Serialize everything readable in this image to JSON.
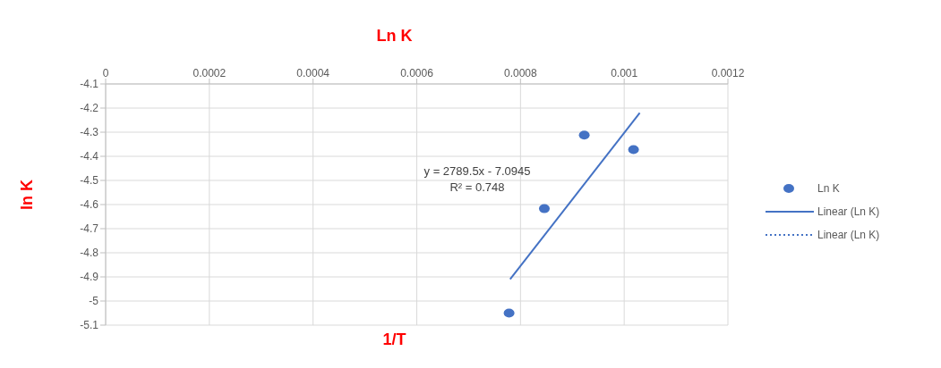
{
  "chart_data": {
    "type": "scatter",
    "title": "Ln K",
    "xlabel": "1/T",
    "ylabel": "ln K",
    "xlim": [
      0,
      0.0012
    ],
    "xticks": [
      0,
      0.0002,
      0.0004,
      0.0006,
      0.0008,
      0.001,
      0.0012
    ],
    "ylim": [
      -5.1,
      -4.1
    ],
    "yticks": [
      -5.1,
      -5,
      -4.9,
      -4.8,
      -4.7,
      -4.6,
      -4.5,
      -4.4,
      -4.3,
      -4.2,
      -4.1
    ],
    "grid": true,
    "legend": "right",
    "annotations": [
      "y = 2789.5x - 7.0945",
      "R² = 0.748"
    ],
    "series": [
      {
        "name": "Ln K",
        "type": "scatter",
        "color": "#4472c4",
        "x": [
          0.000778,
          0.000846,
          0.000923,
          0.001018
        ],
        "values": [
          -5.05,
          -4.617,
          -4.312,
          -4.372
        ],
        "marker": "circle"
      },
      {
        "name": "Linear (Ln K)",
        "type": "line",
        "color": "#4472c4",
        "x": [
          0.00078,
          0.00103
        ],
        "values": [
          -4.91,
          -4.22
        ],
        "line_style": "solid"
      },
      {
        "name": "Linear (Ln K)",
        "type": "line",
        "color": "#4472c4",
        "line_style": "dotted"
      }
    ]
  }
}
